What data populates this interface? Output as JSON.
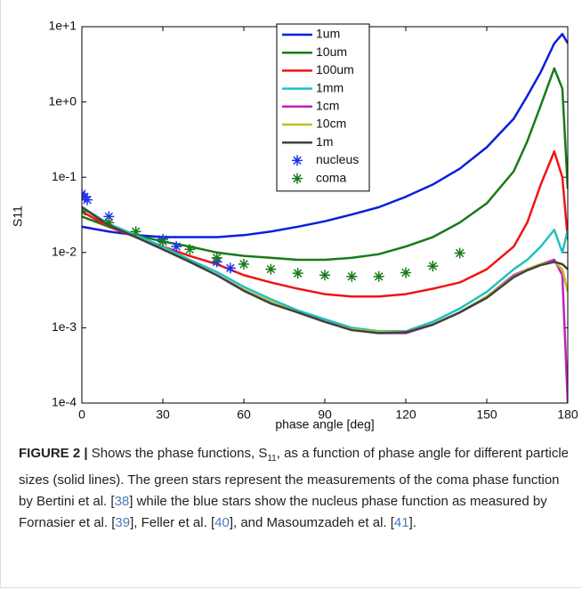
{
  "chart_data": {
    "type": "line",
    "y_label": "S11",
    "x_label": "phase angle [deg]",
    "xlim": [
      0,
      180
    ],
    "xticks": [
      0,
      30,
      60,
      90,
      120,
      150,
      180
    ],
    "ylim": [
      0.0001,
      10
    ],
    "log_y": true,
    "yticks": [
      {
        "value": 0.0001,
        "label": "1e-4"
      },
      {
        "value": 0.001,
        "label": "1e-3"
      },
      {
        "value": 0.01,
        "label": "1e-2"
      },
      {
        "value": 0.1,
        "label": "1e-1"
      },
      {
        "value": 1,
        "label": "1e+0"
      },
      {
        "value": 10,
        "label": "1e+1"
      }
    ],
    "x": [
      0,
      10,
      20,
      30,
      40,
      50,
      60,
      70,
      80,
      90,
      100,
      110,
      120,
      130,
      140,
      150,
      160,
      165,
      170,
      175,
      178,
      180
    ],
    "series": [
      {
        "name": "1um",
        "color": "#0a1fdc",
        "values": [
          0.022,
          0.019,
          0.017,
          0.016,
          0.016,
          0.016,
          0.017,
          0.019,
          0.022,
          0.026,
          0.032,
          0.04,
          0.055,
          0.08,
          0.13,
          0.25,
          0.6,
          1.2,
          2.5,
          6,
          8,
          6
        ]
      },
      {
        "name": "10um",
        "color": "#187a18",
        "values": [
          0.03,
          0.022,
          0.017,
          0.014,
          0.012,
          0.01,
          0.009,
          0.0085,
          0.008,
          0.008,
          0.0085,
          0.0095,
          0.012,
          0.016,
          0.025,
          0.045,
          0.12,
          0.3,
          0.9,
          2.8,
          1.5,
          0.07
        ]
      },
      {
        "name": "100um",
        "color": "#f01414",
        "values": [
          0.035,
          0.022,
          0.016,
          0.012,
          0.009,
          0.007,
          0.005,
          0.004,
          0.0033,
          0.0028,
          0.0026,
          0.0026,
          0.0028,
          0.0033,
          0.004,
          0.006,
          0.012,
          0.025,
          0.08,
          0.22,
          0.1,
          0.015
        ]
      },
      {
        "name": "1mm",
        "color": "#20c0c0",
        "values": [
          0.04,
          0.024,
          0.017,
          0.012,
          0.008,
          0.0055,
          0.0035,
          0.0024,
          0.0017,
          0.0013,
          0.001,
          0.0009,
          0.0009,
          0.0012,
          0.0018,
          0.003,
          0.006,
          0.008,
          0.012,
          0.02,
          0.01,
          0.02
        ]
      },
      {
        "name": "1cm",
        "color": "#c020c0",
        "values": [
          0.04,
          0.023,
          0.016,
          0.011,
          0.0075,
          0.005,
          0.0032,
          0.0022,
          0.0016,
          0.0012,
          0.00095,
          0.00085,
          0.00085,
          0.0011,
          0.0016,
          0.0026,
          0.005,
          0.006,
          0.007,
          0.008,
          0.005,
          0.0001
        ]
      },
      {
        "name": "10cm",
        "color": "#c0c020",
        "values": [
          0.04,
          0.023,
          0.016,
          0.011,
          0.0075,
          0.005,
          0.0032,
          0.0022,
          0.0016,
          0.0012,
          0.00095,
          0.00088,
          0.00088,
          0.0011,
          0.0016,
          0.0026,
          0.0048,
          0.006,
          0.007,
          0.0075,
          0.006,
          0.003
        ]
      },
      {
        "name": "1m",
        "color": "#404040",
        "values": [
          0.04,
          0.023,
          0.016,
          0.011,
          0.0075,
          0.005,
          0.0031,
          0.0021,
          0.0016,
          0.0012,
          0.00093,
          0.00085,
          0.00087,
          0.0011,
          0.0016,
          0.0025,
          0.0047,
          0.0058,
          0.0068,
          0.0075,
          0.007,
          0.006
        ]
      },
      {
        "name": "nucleus",
        "color": "#1f30f0",
        "marker": "star",
        "x": [
          0,
          1,
          2,
          10,
          30,
          35,
          50,
          55
        ],
        "values": [
          0.06,
          0.055,
          0.05,
          0.03,
          0.015,
          0.012,
          0.0075,
          0.0062
        ]
      },
      {
        "name": "coma",
        "color": "#187a18",
        "marker": "star",
        "x": [
          0,
          10,
          20,
          30,
          40,
          50,
          60,
          70,
          80,
          90,
          100,
          110,
          120,
          130,
          140
        ],
        "values": [
          0.035,
          0.025,
          0.019,
          0.014,
          0.011,
          0.0085,
          0.007,
          0.006,
          0.0053,
          0.005,
          0.0048,
          0.0048,
          0.0054,
          0.0066,
          0.0098
        ]
      }
    ]
  },
  "caption": [
    {
      "text": "FIGURE 2 |",
      "style": "bold"
    },
    {
      "text": " Shows the phase functions, S"
    },
    {
      "text": "11",
      "style": "sub"
    },
    {
      "text": ", as a function of phase angle for different particle sizes (solid lines). The green stars represent the measurements of the coma phase function by Bertini et al. ["
    },
    {
      "text": "38",
      "style": "ref"
    },
    {
      "text": "] while the blue stars show the nucleus phase function as measured by Fornasier et al. ["
    },
    {
      "text": "39",
      "style": "ref"
    },
    {
      "text": "], Feller et al. ["
    },
    {
      "text": "40",
      "style": "ref"
    },
    {
      "text": "], and Masoumzadeh et al. ["
    },
    {
      "text": "41",
      "style": "ref"
    },
    {
      "text": "]."
    }
  ]
}
